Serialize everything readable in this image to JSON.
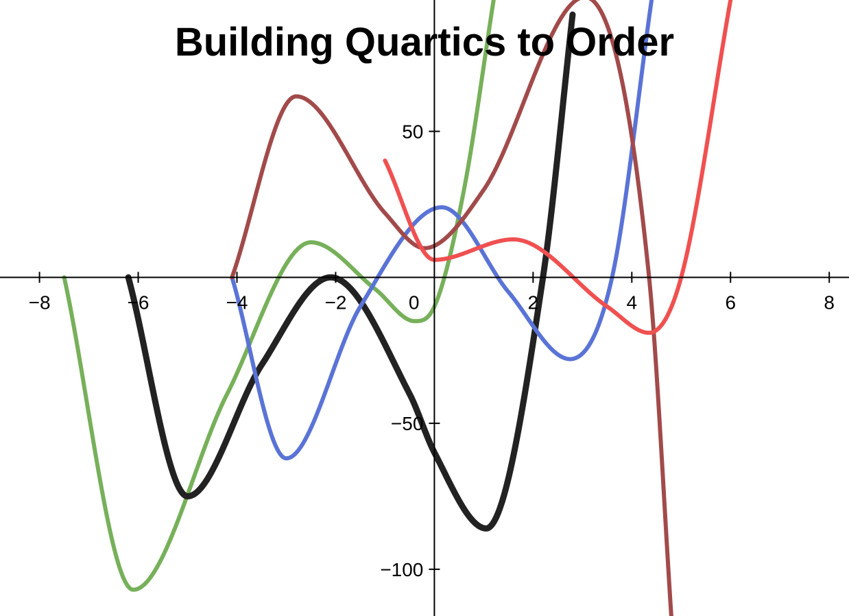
{
  "chart_data": {
    "type": "line",
    "title": "Building Quartics to Order",
    "xlabel": "",
    "ylabel": "",
    "xlim": [
      -8.8,
      8.4
    ],
    "ylim": [
      -116,
      95
    ],
    "grid": false,
    "x_ticks": [
      -8,
      -6,
      -4,
      -2,
      0,
      2,
      4,
      6,
      8
    ],
    "x_tick_labels": [
      "−8",
      "−6",
      "−4",
      "−2",
      "0",
      "2",
      "4",
      "6",
      "8"
    ],
    "y_ticks": [
      50,
      -50,
      -100
    ],
    "y_tick_labels": [
      "50",
      "−50",
      "−100"
    ],
    "series": [
      {
        "color": "#77b05a",
        "x": [
          -7.5,
          -6.1,
          -4.2,
          -2.5,
          -1.2,
          -0.4,
          0.0,
          0.6,
          1.2
        ],
        "y": [
          0,
          -107,
          -40,
          12,
          -4,
          -15,
          -10,
          30,
          95
        ]
      },
      {
        "color": "#222222",
        "x": [
          -6.2,
          -5.0,
          -3.5,
          -2.1,
          -0.5,
          0.0,
          1.05,
          2.2,
          2.8
        ],
        "y": [
          0,
          -75,
          -30,
          0,
          -40,
          -60,
          -86,
          0,
          90
        ]
      },
      {
        "color": "#5a73d6",
        "x": [
          -4.1,
          -3.0,
          -1.5,
          0.15,
          1.5,
          2.75,
          3.6,
          4.4
        ],
        "y": [
          0,
          -62,
          -10,
          24,
          -5,
          -28,
          0,
          95
        ]
      },
      {
        "color": "#a24a4a",
        "x": [
          -4.1,
          -2.8,
          -1.0,
          -0.2,
          1.0,
          3.05,
          4.35,
          4.8
        ],
        "y": [
          0,
          62,
          22,
          10,
          30,
          96,
          0,
          -116
        ]
      },
      {
        "color": "#f05050",
        "x": [
          -1.0,
          0.0,
          1.6,
          3.5,
          4.35,
          5.0,
          6.0
        ],
        "y": [
          40,
          6,
          13,
          -10,
          -19,
          0,
          95
        ]
      }
    ]
  }
}
